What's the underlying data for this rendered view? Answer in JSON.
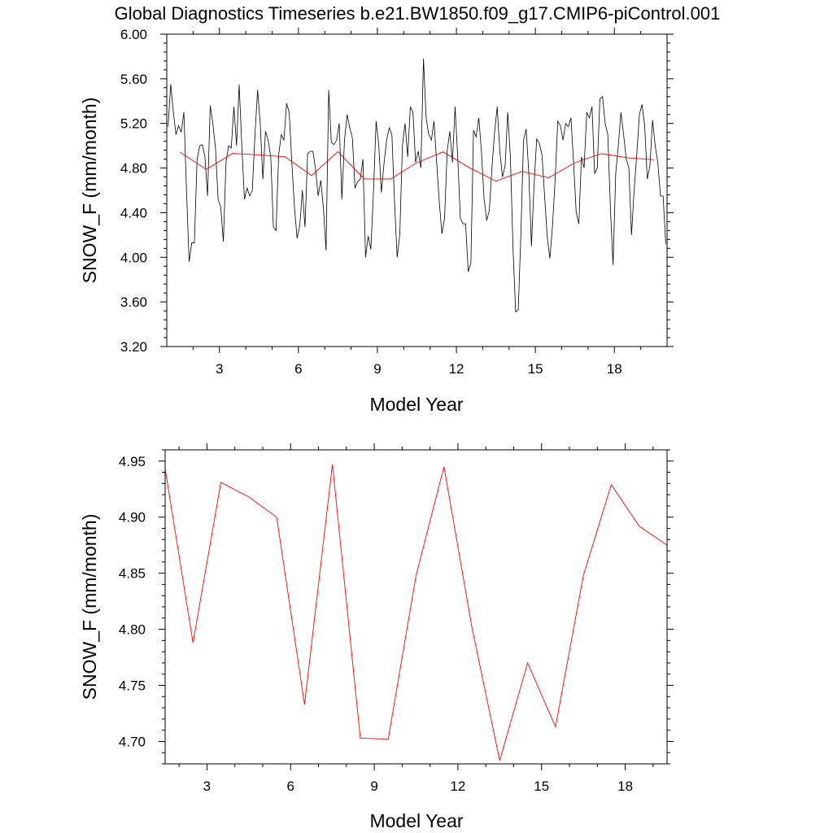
{
  "title": "Global Diagnostics Timeseries b.e21.BW1850.f09_g17.CMIP6-piControl.001",
  "colors": {
    "monthly": "#000000",
    "annual": "#ff0000",
    "axis": "#000000"
  },
  "chart_data": [
    {
      "type": "line",
      "ylabel": "SNOW_F (mm/month)",
      "xlabel": "Model Year",
      "xlim": [
        1.0,
        20.0
      ],
      "ylim": [
        3.2,
        6.0
      ],
      "xticks": [
        "3",
        "6",
        "9",
        "12",
        "15",
        "18"
      ],
      "yticks": [
        "3.20",
        "3.60",
        "4.00",
        "4.40",
        "4.80",
        "5.20",
        "5.60",
        "6.00"
      ],
      "series": [
        {
          "values": [
            5.17,
            5.55,
            5.3,
            5.1,
            5.18,
            5.12,
            5.3,
            4.6,
            3.96,
            4.13,
            4.13,
            4.87,
            5.0,
            5.01,
            4.9,
            4.55,
            5.36,
            5.2,
            4.98,
            4.52,
            4.45,
            4.14,
            4.85,
            5.0,
            4.98,
            5.35,
            5.0,
            5.55,
            5.0,
            4.52,
            4.62,
            4.55,
            4.6,
            5.1,
            5.5,
            5.2,
            4.7,
            5.13,
            5.05,
            4.9,
            4.27,
            4.24,
            4.92,
            5.1,
            5.05,
            5.38,
            5.3,
            4.85,
            4.45,
            4.17,
            4.28,
            4.6,
            4.27,
            4.93,
            4.95,
            4.95,
            4.79,
            4.55,
            4.69,
            4.44,
            4.06,
            5.5,
            5.03,
            5.01,
            5.05,
            5.2,
            4.52,
            5.05,
            5.28,
            5.16,
            5.07,
            4.62,
            4.68,
            4.7,
            4.88,
            4.0,
            4.19,
            4.07,
            4.58,
            5.22,
            5.01,
            4.58,
            4.84,
            5.05,
            5.16,
            5.1,
            4.5,
            4.0,
            4.2,
            5.0,
            5.2,
            4.9,
            5.35,
            5.3,
            4.85,
            4.95,
            4.8,
            5.78,
            5.25,
            5.1,
            5.05,
            5.22,
            4.85,
            4.5,
            4.21,
            4.35,
            4.95,
            5.13,
            4.85,
            5.35,
            4.9,
            4.35,
            4.3,
            4.3,
            3.87,
            3.95,
            5.14,
            5.08,
            5.25,
            4.95,
            4.53,
            4.33,
            4.42,
            4.8,
            5.12,
            5.35,
            4.95,
            4.72,
            4.82,
            5.3,
            4.9,
            4.08,
            3.51,
            3.53,
            4.22,
            5.05,
            5.15,
            4.75,
            4.1,
            4.65,
            5.06,
            5.02,
            4.92,
            4.55,
            4.18,
            3.99,
            4.28,
            4.7,
            5.22,
            5.18,
            5.05,
            5.2,
            5.17,
            5.25,
            4.85,
            4.4,
            4.3,
            4.9,
            4.8,
            5.3,
            5.25,
            5.35,
            4.75,
            4.8,
            5.42,
            5.44,
            5.2,
            5.1,
            4.43,
            3.93,
            4.75,
            5.0,
            5.3,
            5.1,
            4.88,
            4.8,
            4.2,
            4.6,
            4.92,
            5.28,
            5.37,
            5.18,
            4.7,
            4.82,
            5.23,
            5.0,
            4.85,
            4.55,
            4.55,
            4.12
          ]
        },
        {
          "x": [
            1.5,
            2.5,
            3.5,
            4.5,
            5.5,
            6.5,
            7.5,
            8.5,
            9.5,
            10.5,
            11.5,
            12.5,
            13.5,
            14.5,
            15.5,
            16.5,
            17.5,
            18.5,
            19.5
          ],
          "values": [
            4.943,
            4.788,
            4.931,
            4.918,
            4.9,
            4.733,
            4.947,
            4.703,
            4.702,
            4.848,
            4.945,
            4.802,
            4.683,
            4.77,
            4.713,
            4.848,
            4.929,
            4.892,
            4.875
          ]
        }
      ]
    },
    {
      "type": "line",
      "ylabel": "SNOW_F (mm/month)",
      "xlabel": "Model Year",
      "xlim": [
        1.5,
        19.5
      ],
      "ylim": [
        4.68,
        4.96
      ],
      "xticks": [
        "3",
        "6",
        "9",
        "12",
        "15",
        "18"
      ],
      "yticks": [
        "4.70",
        "4.75",
        "4.80",
        "4.85",
        "4.90",
        "4.95"
      ],
      "series": [
        {
          "x": [
            1.5,
            2.5,
            3.5,
            4.5,
            5.5,
            6.5,
            7.5,
            8.5,
            9.5,
            10.5,
            11.5,
            12.5,
            13.5,
            14.5,
            15.5,
            16.5,
            17.5,
            18.5,
            19.5
          ],
          "values": [
            4.943,
            4.788,
            4.931,
            4.918,
            4.9,
            4.733,
            4.947,
            4.703,
            4.702,
            4.848,
            4.945,
            4.802,
            4.683,
            4.77,
            4.713,
            4.848,
            4.929,
            4.892,
            4.875
          ]
        }
      ]
    }
  ]
}
